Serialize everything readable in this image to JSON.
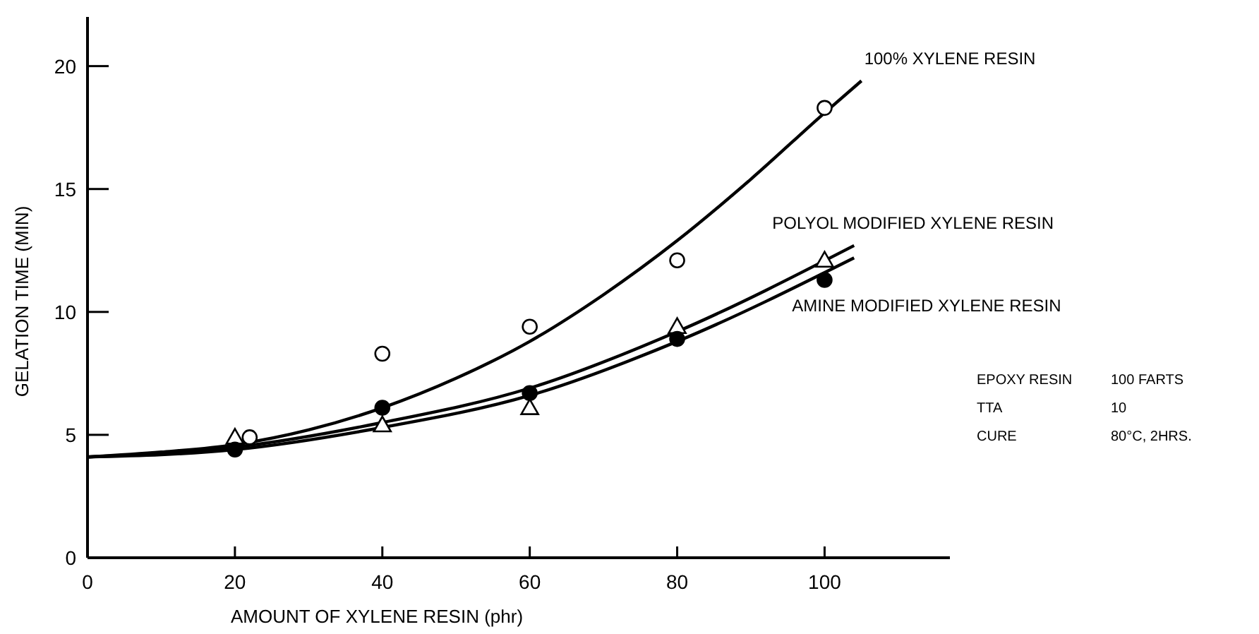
{
  "chart_data": {
    "type": "scatter",
    "xlabel": "AMOUNT OF XYLENE RESIN (phr)",
    "ylabel": "GELATION TIME (MIN)",
    "xlim": [
      0,
      117
    ],
    "ylim": [
      0,
      22
    ],
    "xticks": [
      0,
      20,
      40,
      60,
      80,
      100
    ],
    "yticks": [
      0,
      5,
      10,
      15,
      20
    ],
    "grid": false,
    "legend": false,
    "series": [
      {
        "marker": "circle",
        "color": "#ffffff",
        "x": [
          22,
          40,
          60,
          80,
          100
        ],
        "values": [
          4.9,
          8.3,
          9.4,
          12.1,
          18.3
        ]
      },
      {
        "marker": "triangle",
        "color": "#ffffff",
        "x": [
          20,
          40,
          60,
          80,
          100
        ],
        "values": [
          4.9,
          5.4,
          6.1,
          9.4,
          12.1
        ]
      },
      {
        "marker": "circle",
        "color": "#000000",
        "x": [
          20,
          40,
          60,
          80,
          100
        ],
        "values": [
          4.4,
          6.1,
          6.7,
          8.9,
          11.3
        ]
      },
      {
        "type": "line",
        "name": "100% XYLENE RESIN",
        "color": "#000000",
        "x": [
          0,
          10,
          20,
          30,
          40,
          50,
          60,
          70,
          80,
          90,
          100,
          105
        ],
        "values": [
          4.1,
          4.3,
          4.6,
          5.2,
          6.1,
          7.3,
          8.8,
          10.7,
          12.9,
          15.4,
          18.1,
          19.4
        ]
      },
      {
        "type": "line",
        "name": "POLYOL MODIFIED XYLENE RESIN",
        "color": "#000000",
        "x": [
          0,
          20,
          40,
          60,
          80,
          104
        ],
        "values": [
          4.1,
          4.5,
          5.5,
          6.9,
          9.2,
          12.7
        ]
      },
      {
        "type": "line",
        "name": "AMINE MODIFIED XYLENE RESIN",
        "color": "#000000",
        "x": [
          0,
          20,
          40,
          60,
          80,
          104
        ],
        "values": [
          4.1,
          4.4,
          5.3,
          6.6,
          8.8,
          12.2
        ]
      }
    ],
    "annotations": [
      "EPOXY RESIN",
      "100 FARTS",
      "TTA",
      "10",
      "CURE",
      "80°C, 2HRS."
    ]
  }
}
